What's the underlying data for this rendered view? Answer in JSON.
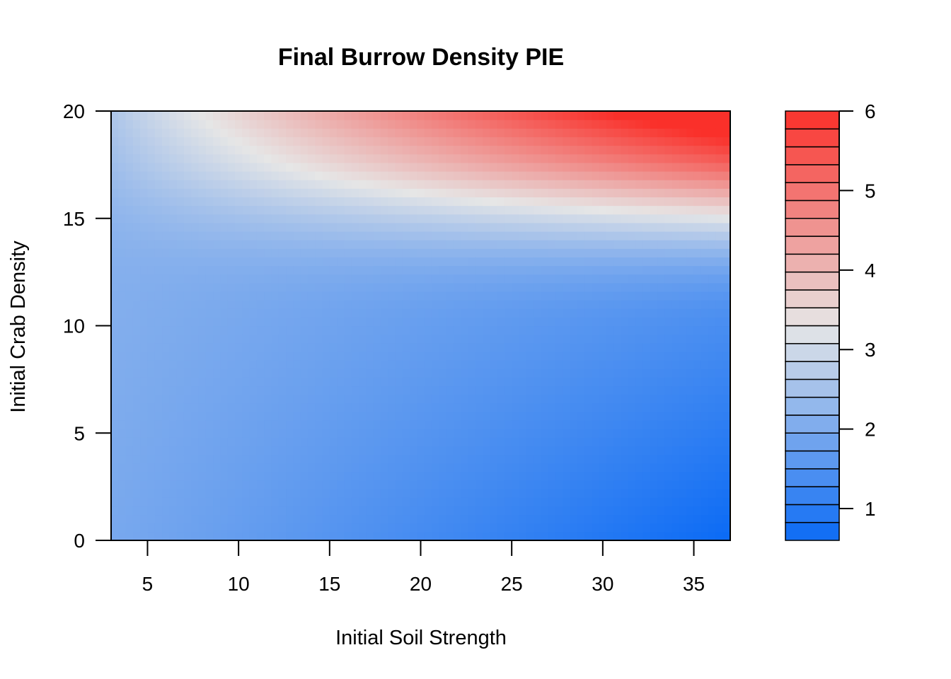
{
  "chart_data": {
    "type": "heatmap",
    "title": "Final Burrow Density PIE",
    "xlabel": "Initial Soil Strength",
    "ylabel": "Initial Crab Density",
    "xlim": [
      3,
      37
    ],
    "ylim": [
      0,
      20
    ],
    "x_ticks": [
      "5",
      "10",
      "15",
      "20",
      "25",
      "30",
      "35"
    ],
    "x_tick_values": [
      5,
      10,
      15,
      20,
      25,
      30,
      35
    ],
    "y_ticks": [
      "0",
      "5",
      "10",
      "15",
      "20"
    ],
    "y_tick_values": [
      0,
      5,
      10,
      15,
      20
    ],
    "legend": {
      "placement": "right",
      "min": 0.6,
      "max": 6.0,
      "levels": 24,
      "ticks": [
        "1",
        "2",
        "3",
        "4",
        "5",
        "6"
      ],
      "tick_values": [
        1,
        2,
        3,
        4,
        5,
        6
      ]
    },
    "colors": {
      "low": "#0A6AF5",
      "mid": "#E6E6E6",
      "high": "#FA302A",
      "mid_value": 3.3
    },
    "corner_values": {
      "x3_y0": 1.9,
      "x37_y0": 0.6,
      "x3_y20": 2.6,
      "x37_y20": 6.0,
      "x14_y20": 3.3,
      "x37_y15": 3.3,
      "x3_y10": 2.0,
      "x37_y10": 2.0
    }
  }
}
